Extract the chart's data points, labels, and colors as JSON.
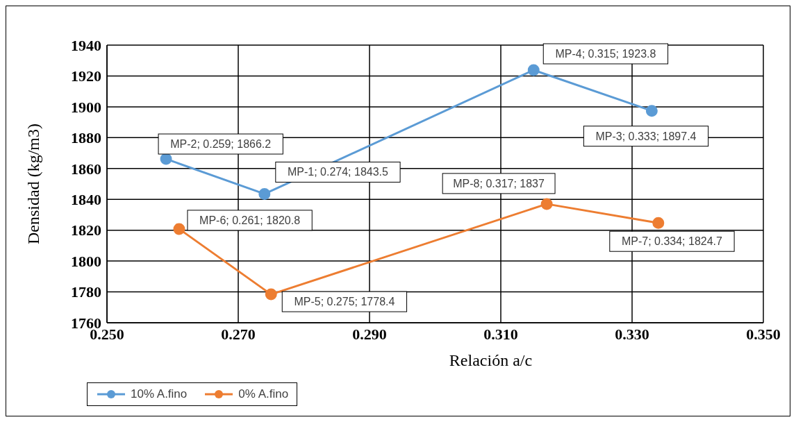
{
  "chart_data": {
    "type": "line",
    "xlabel": "Relación a/c",
    "ylabel": "Densidad (kg/m3)",
    "xlim": [
      0.25,
      0.35
    ],
    "xticks": [
      {
        "value": 0.25,
        "label": "0.250"
      },
      {
        "value": 0.27,
        "label": "0.270"
      },
      {
        "value": 0.29,
        "label": "0.290"
      },
      {
        "value": 0.31,
        "label": "0.310"
      },
      {
        "value": 0.33,
        "label": "0.330"
      },
      {
        "value": 0.35,
        "label": "0.350"
      }
    ],
    "ylim": [
      1760,
      1940
    ],
    "yticks": [
      1760,
      1780,
      1800,
      1820,
      1840,
      1860,
      1880,
      1900,
      1920,
      1940
    ],
    "grid": true,
    "legend": "bottom left",
    "marker": "circle",
    "line_style": "solid",
    "series": [
      {
        "name": "10% A.fino",
        "color": "#5b9bd5",
        "x": [
          0.259,
          0.274,
          0.315,
          0.333
        ],
        "values": [
          1866.2,
          1843.5,
          1923.8,
          1897.4
        ],
        "value_labels": [
          "MP-2; 0.259; 1866.2",
          "MP-1; 0.274; 1843.5",
          "MP-4; 0.315; 1923.8",
          "MP-3; 0.333; 1897.4"
        ]
      },
      {
        "name": "0% A.fino",
        "color": "#ed7d31",
        "x": [
          0.261,
          0.275,
          0.317,
          0.334
        ],
        "values": [
          1820.8,
          1778.4,
          1837,
          1824.7
        ],
        "value_labels": [
          "MP-6; 0.261; 1820.8",
          "MP-5; 0.275; 1778.4",
          "MP-8; 0.317; 1837",
          "MP-7; 0.334; 1824.7"
        ]
      }
    ]
  }
}
